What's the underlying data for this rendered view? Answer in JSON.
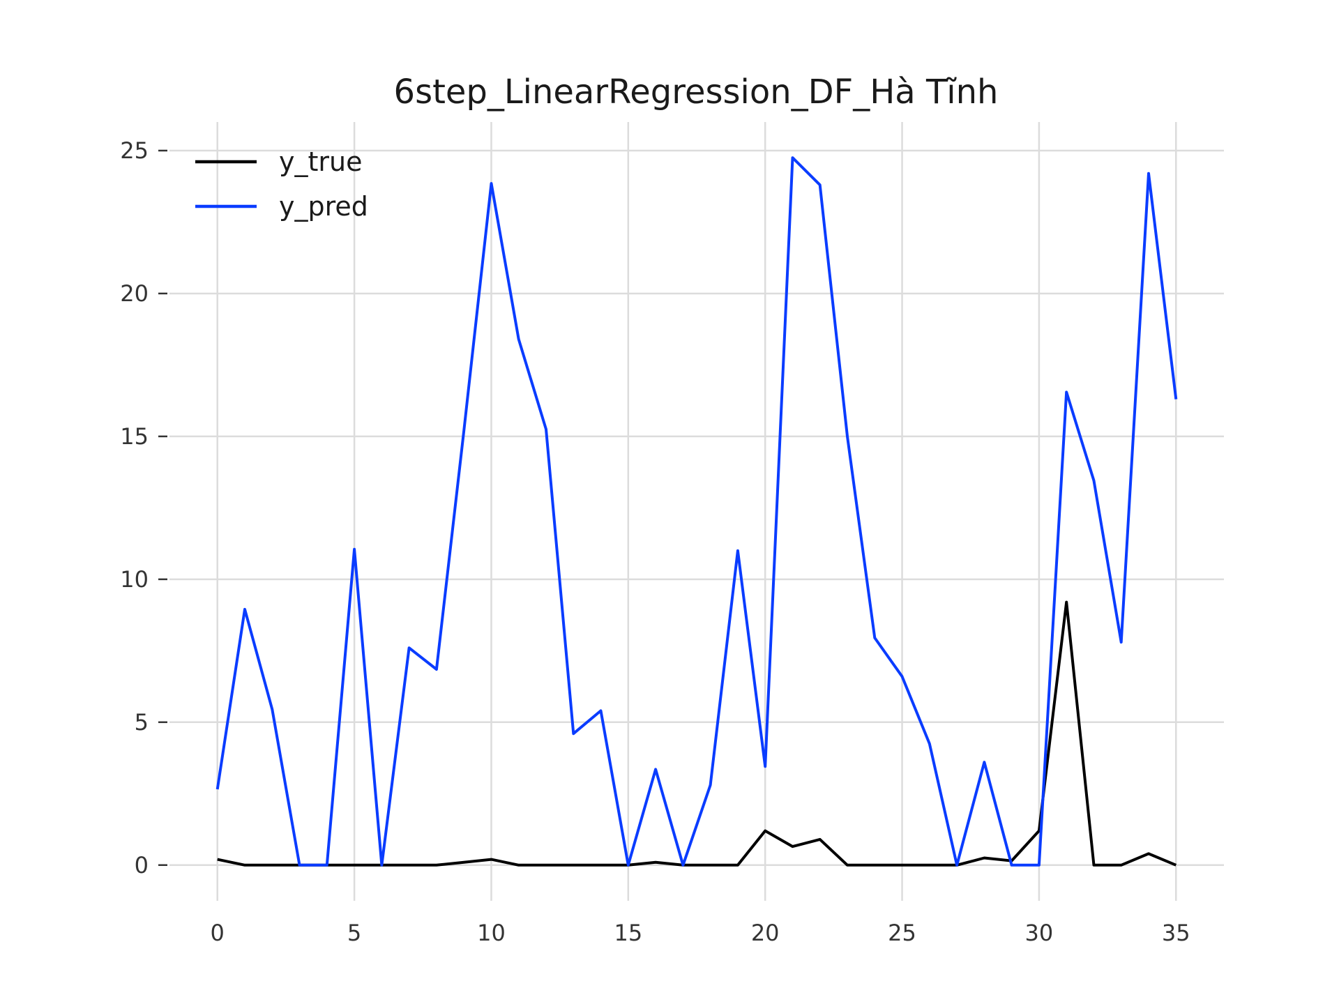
{
  "chart_data": {
    "type": "line",
    "title": "6step_LinearRegression_DF_Hà Tĩnh",
    "xlabel": "",
    "ylabel": "",
    "xlim": [
      -1.75,
      36.75
    ],
    "ylim": [
      -1.25,
      26.0
    ],
    "xticks": [
      0,
      5,
      10,
      15,
      20,
      25,
      30,
      35
    ],
    "yticks": [
      0,
      5,
      10,
      15,
      20,
      25
    ],
    "grid": true,
    "legend_position": "top-left",
    "x": [
      0,
      1,
      2,
      3,
      4,
      5,
      6,
      7,
      8,
      9,
      10,
      11,
      12,
      13,
      14,
      15,
      16,
      17,
      18,
      19,
      20,
      21,
      22,
      23,
      24,
      25,
      26,
      27,
      28,
      29,
      30,
      31,
      32,
      33,
      34,
      35
    ],
    "series": [
      {
        "name": "y_true",
        "color": "#000000",
        "values": [
          0.2,
          0.0,
          0.0,
          0.0,
          0.0,
          0.0,
          0.0,
          0.0,
          0.0,
          0.1,
          0.2,
          0.0,
          0.0,
          0.0,
          0.0,
          0.0,
          0.1,
          0.0,
          0.0,
          0.0,
          1.2,
          0.65,
          0.9,
          0.0,
          0.0,
          0.0,
          0.0,
          0.0,
          0.25,
          0.15,
          1.2,
          9.2,
          0.0,
          0.0,
          0.4,
          0.0
        ]
      },
      {
        "name": "y_pred",
        "color": "#0a3cff",
        "values": [
          2.65,
          8.95,
          5.45,
          0.0,
          0.0,
          11.05,
          0.0,
          7.6,
          6.85,
          15.2,
          23.85,
          18.4,
          15.25,
          4.6,
          5.4,
          0.0,
          3.35,
          0.0,
          2.8,
          11.0,
          3.45,
          24.75,
          23.8,
          15.0,
          7.95,
          6.6,
          4.25,
          0.0,
          3.6,
          0.0,
          0.0,
          16.55,
          13.45,
          7.8,
          24.2,
          16.3
        ]
      }
    ]
  }
}
